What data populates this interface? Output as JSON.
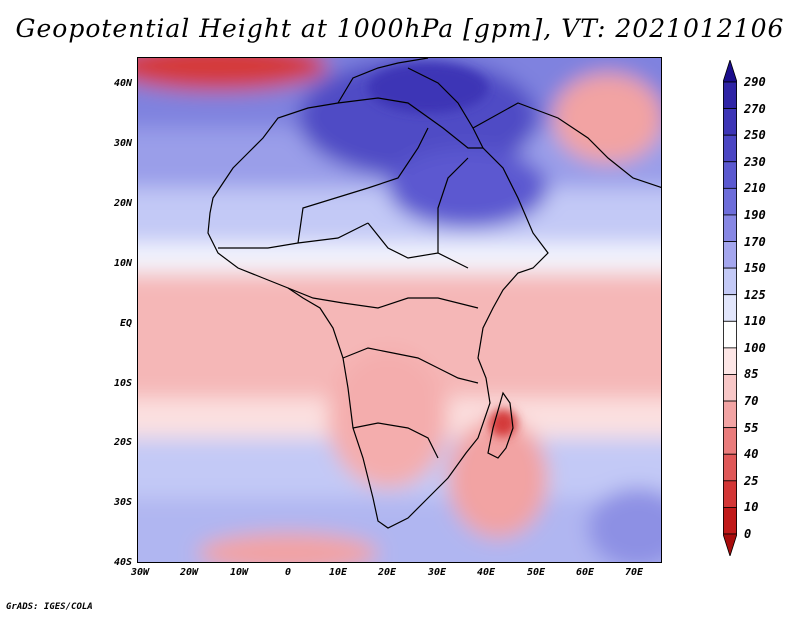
{
  "title": "Geopotential Height at 1000hPa [gpm], VT: 2021012106",
  "footer": "GrADS: IGES/COLA",
  "y_axis_labels": [
    "40N",
    "30N",
    "20N",
    "10N",
    "EQ",
    "10S",
    "20S",
    "30S",
    "40S"
  ],
  "x_axis_labels": [
    "30W",
    "20W",
    "10W",
    "0",
    "10E",
    "20E",
    "30E",
    "40E",
    "50E",
    "60E",
    "70E"
  ],
  "colorbar": {
    "labels": [
      "290",
      "270",
      "250",
      "230",
      "210",
      "190",
      "170",
      "150",
      "125",
      "110",
      "100",
      "85",
      "70",
      "55",
      "40",
      "25",
      "10",
      "0"
    ],
    "colors": [
      "#1b0d8c",
      "#2f24a6",
      "#3d35b6",
      "#4b46c4",
      "#5b59d0",
      "#6d6dda",
      "#8787e4",
      "#a4a6ee",
      "#c3c9f6",
      "#e2e6fc",
      "#ffffff",
      "#fde6e6",
      "#f8c7c7",
      "#f2a3a3",
      "#ea7c7c",
      "#e05858",
      "#d33636",
      "#c11a1a",
      "#a80c0c"
    ]
  },
  "map": {
    "lon_range": [
      -30,
      75
    ],
    "lat_range": [
      -40,
      45
    ],
    "field": "Geopotential Height",
    "level": "1000hPa",
    "units": "gpm",
    "valid_time": "2021012106"
  }
}
